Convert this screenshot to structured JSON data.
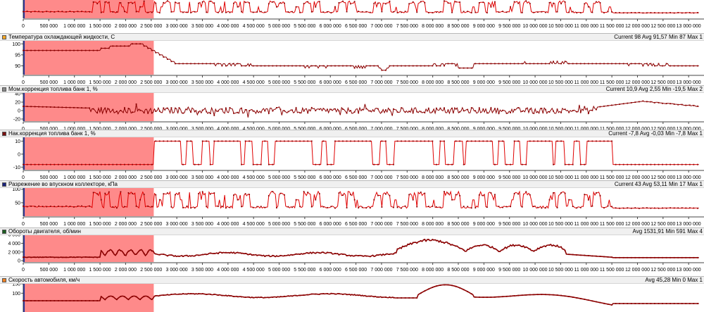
{
  "colors": {
    "highlight": "#fe8a8a",
    "trace": "#8b0000",
    "trace_light": "#e00000",
    "cursor": "#1c2ea8"
  },
  "highlight_range": [
    0,
    2550000
  ],
  "x_ticks": [
    "0",
    "500 000",
    "1 000 000",
    "1 500 000",
    "2 000 000",
    "2 500 000",
    "3 000 000",
    "3 500 000",
    "4 000 000",
    "4 500 000",
    "5 000 000",
    "5 500 000",
    "6 000 000",
    "6 500 000",
    "7 000 000",
    "7 500 000",
    "8 000 000",
    "8 500 000",
    "9 000 000",
    "9 500 000",
    "10 000 000",
    "10 500 000",
    "11 000 000",
    "11 500 000",
    "12 000 000",
    "12 500 000",
    "13 000 000"
  ],
  "panels": [
    {
      "id": "top",
      "title": "",
      "stats": "",
      "swatch": "",
      "yticks": [],
      "ylim": [
        0,
        100
      ],
      "pattern": "pulse",
      "base": 30,
      "high": 95,
      "noise": 8
    },
    {
      "id": "coolant",
      "title": "Температура охлаждающей жидкости, С",
      "stats": "Current 98 Avg 91,57 Min 87 Max 1",
      "swatch": "#f5a623",
      "yticks": [
        "100",
        "95",
        "90"
      ],
      "ylim": [
        86,
        102
      ],
      "pattern": "temp"
    },
    {
      "id": "stft",
      "title": "Мом.коррекция топлива банк 1, %",
      "stats": "Current 10,9 Avg 2,55 Min -19,5 Max 2",
      "swatch": "#8a8a8a",
      "yticks": [
        "40",
        "20",
        "0",
        "-20"
      ],
      "ylim": [
        -25,
        45
      ],
      "pattern": "stft"
    },
    {
      "id": "ltft",
      "title": "Нак.коррекция топлива банк 1, %",
      "stats": "Current -7,8 Avg -0,03 Min -7,8 Max 1",
      "swatch": "#7a1010",
      "yticks": [
        "10",
        "0",
        "-10"
      ],
      "ylim": [
        -12,
        14
      ],
      "pattern": "ltft"
    },
    {
      "id": "map",
      "title": "Разрежение во впускном коллекторе, кПа",
      "stats": "Current 43 Avg 53,11 Min 17 Max 1",
      "swatch": "#1a237e",
      "yticks": [
        "100",
        "50"
      ],
      "ylim": [
        0,
        115
      ],
      "pattern": "pulse",
      "base": 30,
      "high": 92,
      "noise": 8
    },
    {
      "id": "rpm",
      "title": "Обороты двигателя, об/мин",
      "stats": "Avg 1531,91 Min 591 Max 4",
      "swatch": "#1b5e20",
      "yticks": [
        "6 000",
        "4 000",
        "2 000",
        "0"
      ],
      "ylim": [
        -300,
        6500
      ],
      "pattern": "rpm"
    },
    {
      "id": "speed",
      "title": "Скорость автомобиля, км/ч",
      "stats": "Avg 45,28 Min 0 Max 1",
      "swatch": "#f08020",
      "yticks": [
        "150",
        "100"
      ],
      "ylim": [
        0,
        165
      ],
      "pattern": "speed"
    }
  ],
  "chart_data": {
    "type": "line",
    "x_range": [
      0,
      13300000
    ],
    "series": [
      {
        "name": "Температура охлаждающей жидкости, С",
        "ylim": [
          86,
          102
        ],
        "points": [
          [
            0,
            97
          ],
          [
            1000000,
            97
          ],
          [
            1500000,
            98
          ],
          [
            2000000,
            99
          ],
          [
            2300000,
            100
          ],
          [
            2550000,
            98
          ],
          [
            3000000,
            91
          ],
          [
            5000000,
            90
          ],
          [
            7000000,
            91
          ],
          [
            8500000,
            90
          ],
          [
            10000000,
            91
          ],
          [
            13200000,
            90
          ]
        ]
      },
      {
        "name": "Мом.коррекция топлива банк 1, %",
        "ylim": [
          -25,
          45
        ],
        "points": [
          [
            0,
            10
          ],
          [
            1500000,
            8
          ],
          [
            2500000,
            0
          ],
          [
            5000000,
            0
          ],
          [
            8000000,
            -5
          ],
          [
            10000000,
            2
          ],
          [
            11000000,
            -10
          ],
          [
            11500000,
            15
          ],
          [
            12000000,
            20
          ],
          [
            13200000,
            10
          ]
        ]
      },
      {
        "name": "Нак.коррекция топлива банк 1, %",
        "ylim": [
          -12,
          14
        ],
        "points": [
          [
            0,
            -8
          ],
          [
            2550000,
            -8
          ],
          [
            2600000,
            10
          ],
          [
            11500000,
            10
          ],
          [
            11520000,
            -8
          ],
          [
            13200000,
            -8
          ]
        ]
      },
      {
        "name": "Разрежение во впускном коллекторе, кПа",
        "ylim": [
          0,
          115
        ],
        "points": [
          [
            0,
            40
          ],
          [
            1300000,
            35
          ],
          [
            1500000,
            90
          ],
          [
            11500000,
            30
          ],
          [
            13200000,
            30
          ]
        ]
      },
      {
        "name": "Обороты двигателя, об/мин",
        "ylim": [
          -300,
          6500
        ],
        "points": [
          [
            0,
            800
          ],
          [
            1500000,
            900
          ],
          [
            2000000,
            2000
          ],
          [
            2500000,
            700
          ],
          [
            5000000,
            1500
          ],
          [
            7300000,
            2200
          ],
          [
            7600000,
            4000
          ],
          [
            8100000,
            5000
          ],
          [
            8600000,
            2000
          ],
          [
            9200000,
            3500
          ],
          [
            10000000,
            2500
          ],
          [
            10600000,
            1500
          ],
          [
            11500000,
            700
          ],
          [
            13200000,
            700
          ]
        ]
      },
      {
        "name": "Скорость автомобиля, км/ч",
        "ylim": [
          0,
          165
        ],
        "points": [
          [
            0,
            60
          ],
          [
            2550000,
            80
          ],
          [
            5000000,
            90
          ],
          [
            7000000,
            110
          ],
          [
            7500000,
            90
          ],
          [
            8300000,
            145
          ],
          [
            9000000,
            120
          ],
          [
            11500000,
            50
          ],
          [
            13200000,
            40
          ]
        ]
      }
    ]
  }
}
